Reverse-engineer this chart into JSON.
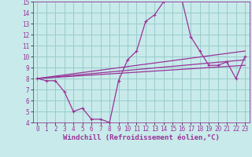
{
  "xlabel": "Windchill (Refroidissement éolien,°C)",
  "background_color": "#c8eaea",
  "grid_color": "#99cccc",
  "line_color": "#993399",
  "xlim": [
    -0.5,
    23.5
  ],
  "ylim": [
    4,
    15
  ],
  "xticks": [
    0,
    1,
    2,
    3,
    4,
    5,
    6,
    7,
    8,
    9,
    10,
    11,
    12,
    13,
    14,
    15,
    16,
    17,
    18,
    19,
    20,
    21,
    22,
    23
  ],
  "yticks": [
    4,
    5,
    6,
    7,
    8,
    9,
    10,
    11,
    12,
    13,
    14,
    15
  ],
  "line1_x": [
    0,
    1,
    2,
    3,
    4,
    5,
    6,
    7,
    8,
    9,
    10,
    11,
    12,
    13,
    14,
    15,
    16,
    17,
    18,
    19,
    20,
    21,
    22,
    23
  ],
  "line1_y": [
    8.0,
    7.8,
    7.8,
    6.8,
    5.0,
    5.3,
    4.3,
    4.3,
    4.0,
    7.8,
    9.7,
    10.5,
    13.2,
    13.8,
    15.0,
    15.2,
    15.2,
    11.8,
    10.5,
    9.2,
    9.2,
    9.5,
    8.0,
    10.0
  ],
  "line2_x": [
    0,
    23
  ],
  "line2_y": [
    8.0,
    9.2
  ],
  "line3_x": [
    0,
    23
  ],
  "line3_y": [
    8.0,
    9.7
  ],
  "line4_x": [
    0,
    23
  ],
  "line4_y": [
    8.0,
    10.5
  ],
  "tick_fontsize": 5.5,
  "label_fontsize": 6.5
}
